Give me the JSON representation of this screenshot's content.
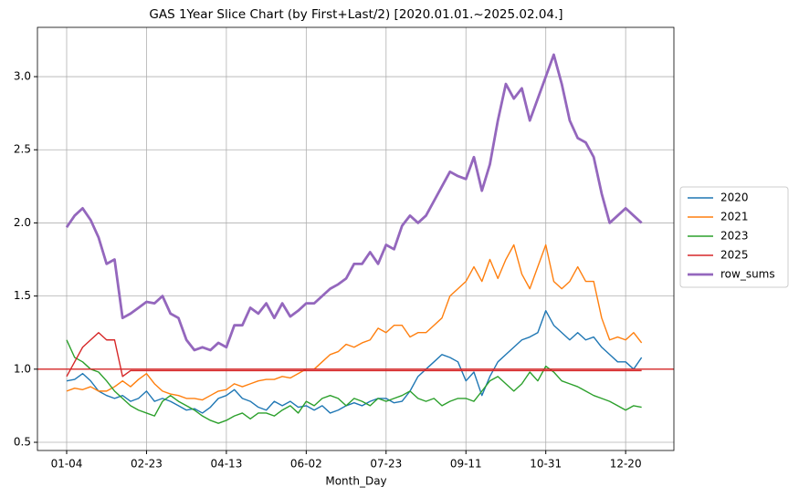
{
  "chart_data": {
    "type": "line",
    "title": "GAS 1Year Slice Chart (by First+Last/2) [2020.01.01.~2025.02.04.]",
    "x_label": "Month_Day",
    "categories": [
      "01-04",
      null,
      null,
      null,
      null,
      null,
      null,
      null,
      null,
      null,
      "02-23",
      null,
      null,
      null,
      null,
      null,
      null,
      null,
      null,
      null,
      "04-13",
      null,
      null,
      null,
      null,
      null,
      null,
      null,
      null,
      null,
      "06-02",
      null,
      null,
      null,
      null,
      null,
      null,
      null,
      null,
      null,
      "07-23",
      null,
      null,
      null,
      null,
      null,
      null,
      null,
      null,
      null,
      "09-11",
      null,
      null,
      null,
      null,
      null,
      null,
      null,
      null,
      null,
      "10-31",
      null,
      null,
      null,
      null,
      null,
      null,
      null,
      null,
      null,
      "12-20",
      null,
      null
    ],
    "ylim": [
      0.444,
      3.337
    ],
    "yticks": [
      0.5,
      {
        "value": 1,
        "label": "1.0"
      },
      1.5,
      {
        "value": 2,
        "label": "2.0"
      },
      2.5,
      {
        "value": 3,
        "label": "3.0"
      }
    ],
    "grid": true,
    "legend": "right",
    "hline": {
      "value": 1,
      "color": "#d62728"
    },
    "series": [
      {
        "name": "2020",
        "color": "#1f77b4",
        "width": 1,
        "values": [
          0.92,
          0.93,
          0.97,
          0.92,
          0.85,
          0.82,
          0.8,
          0.82,
          0.78,
          0.8,
          0.85,
          0.78,
          0.8,
          0.78,
          0.75,
          0.72,
          0.73,
          0.7,
          0.74,
          0.8,
          0.82,
          0.86,
          0.8,
          0.78,
          0.74,
          0.72,
          0.78,
          0.75,
          0.78,
          0.74,
          0.75,
          0.72,
          0.75,
          0.7,
          0.72,
          0.75,
          0.77,
          0.75,
          0.78,
          0.8,
          0.8,
          0.77,
          0.78,
          0.85,
          0.95,
          1.0,
          1.05,
          1.1,
          1.08,
          1.05,
          0.92,
          0.98,
          0.82,
          0.95,
          1.05,
          1.1,
          1.15,
          1.2,
          1.22,
          1.25,
          1.4,
          1.3,
          1.25,
          1.2,
          1.25,
          1.2,
          1.22,
          1.15,
          1.1,
          1.05,
          1.05,
          1.0,
          1.08
        ]
      },
      {
        "name": "2021",
        "color": "#ff7f0e",
        "width": 1,
        "values": [
          0.85,
          0.87,
          0.86,
          0.88,
          0.85,
          0.85,
          0.88,
          0.92,
          0.88,
          0.93,
          0.97,
          0.9,
          0.85,
          0.83,
          0.82,
          0.8,
          0.8,
          0.79,
          0.82,
          0.85,
          0.86,
          0.9,
          0.88,
          0.9,
          0.92,
          0.93,
          0.93,
          0.95,
          0.94,
          0.97,
          1.0,
          1.0,
          1.05,
          1.1,
          1.12,
          1.17,
          1.15,
          1.18,
          1.2,
          1.28,
          1.25,
          1.3,
          1.3,
          1.22,
          1.25,
          1.25,
          1.3,
          1.35,
          1.5,
          1.55,
          1.6,
          1.7,
          1.6,
          1.75,
          1.62,
          1.75,
          1.85,
          1.65,
          1.55,
          1.7,
          1.85,
          1.6,
          1.55,
          1.6,
          1.7,
          1.6,
          1.6,
          1.35,
          1.2,
          1.22,
          1.2,
          1.25,
          1.18
        ]
      },
      {
        "name": "2023",
        "color": "#2ca02c",
        "width": 1,
        "values": [
          1.2,
          1.08,
          1.05,
          1.0,
          0.98,
          0.92,
          0.85,
          0.8,
          0.75,
          0.72,
          0.7,
          0.68,
          0.78,
          0.82,
          0.78,
          0.75,
          0.72,
          0.68,
          0.65,
          0.63,
          0.65,
          0.68,
          0.7,
          0.66,
          0.7,
          0.7,
          0.68,
          0.72,
          0.75,
          0.7,
          0.78,
          0.75,
          0.8,
          0.82,
          0.8,
          0.75,
          0.8,
          0.78,
          0.75,
          0.8,
          0.78,
          0.8,
          0.82,
          0.85,
          0.8,
          0.78,
          0.8,
          0.75,
          0.78,
          0.8,
          0.8,
          0.78,
          0.85,
          0.92,
          0.95,
          0.9,
          0.85,
          0.9,
          0.98,
          0.92,
          1.02,
          0.98,
          0.92,
          0.9,
          0.88,
          0.85,
          0.82,
          0.8,
          0.78,
          0.75,
          0.72,
          0.75,
          0.74
        ]
      },
      {
        "name": "2025",
        "color": "#d62728",
        "width": 1,
        "values": [
          0.95,
          1.05,
          1.15,
          1.2,
          1.25,
          1.2,
          1.2,
          0.95,
          0.99,
          0.99,
          0.99,
          0.99,
          0.99,
          0.99,
          0.99,
          0.99,
          0.99,
          0.99,
          0.99,
          0.99,
          0.99,
          0.99,
          0.99,
          0.99,
          0.99,
          0.99,
          0.99,
          0.99,
          0.99,
          0.99,
          0.99,
          0.99,
          0.99,
          0.99,
          0.99,
          0.99,
          0.99,
          0.99,
          0.99,
          0.99,
          0.99,
          0.99,
          0.99,
          0.99,
          0.99,
          0.99,
          0.99,
          0.99,
          0.99,
          0.99,
          0.99,
          0.99,
          0.99,
          0.99,
          0.99,
          0.99,
          0.99,
          0.99,
          0.99,
          0.99,
          0.99,
          0.99,
          0.99,
          0.99,
          0.99,
          0.99,
          0.99,
          0.99,
          0.99,
          0.99,
          0.99,
          0.99,
          0.99
        ]
      },
      {
        "name": "row_sums",
        "color": "#9467bd",
        "width": 2,
        "values": [
          1.97,
          2.05,
          2.1,
          2.02,
          1.9,
          1.72,
          1.75,
          1.35,
          1.38,
          1.42,
          1.46,
          1.45,
          1.5,
          1.38,
          1.35,
          1.2,
          1.13,
          1.15,
          1.13,
          1.18,
          1.15,
          1.3,
          1.3,
          1.42,
          1.38,
          1.45,
          1.35,
          1.45,
          1.36,
          1.4,
          1.45,
          1.45,
          1.5,
          1.55,
          1.58,
          1.62,
          1.72,
          1.72,
          1.8,
          1.72,
          1.85,
          1.82,
          1.98,
          2.05,
          2.0,
          2.05,
          2.15,
          2.25,
          2.35,
          2.32,
          2.3,
          2.45,
          2.22,
          2.4,
          2.7,
          2.95,
          2.85,
          2.92,
          2.7,
          2.85,
          3.0,
          3.15,
          2.95,
          2.7,
          2.58,
          2.55,
          2.45,
          2.2,
          2.0,
          2.05,
          2.1,
          2.05,
          2.0
        ]
      }
    ]
  }
}
